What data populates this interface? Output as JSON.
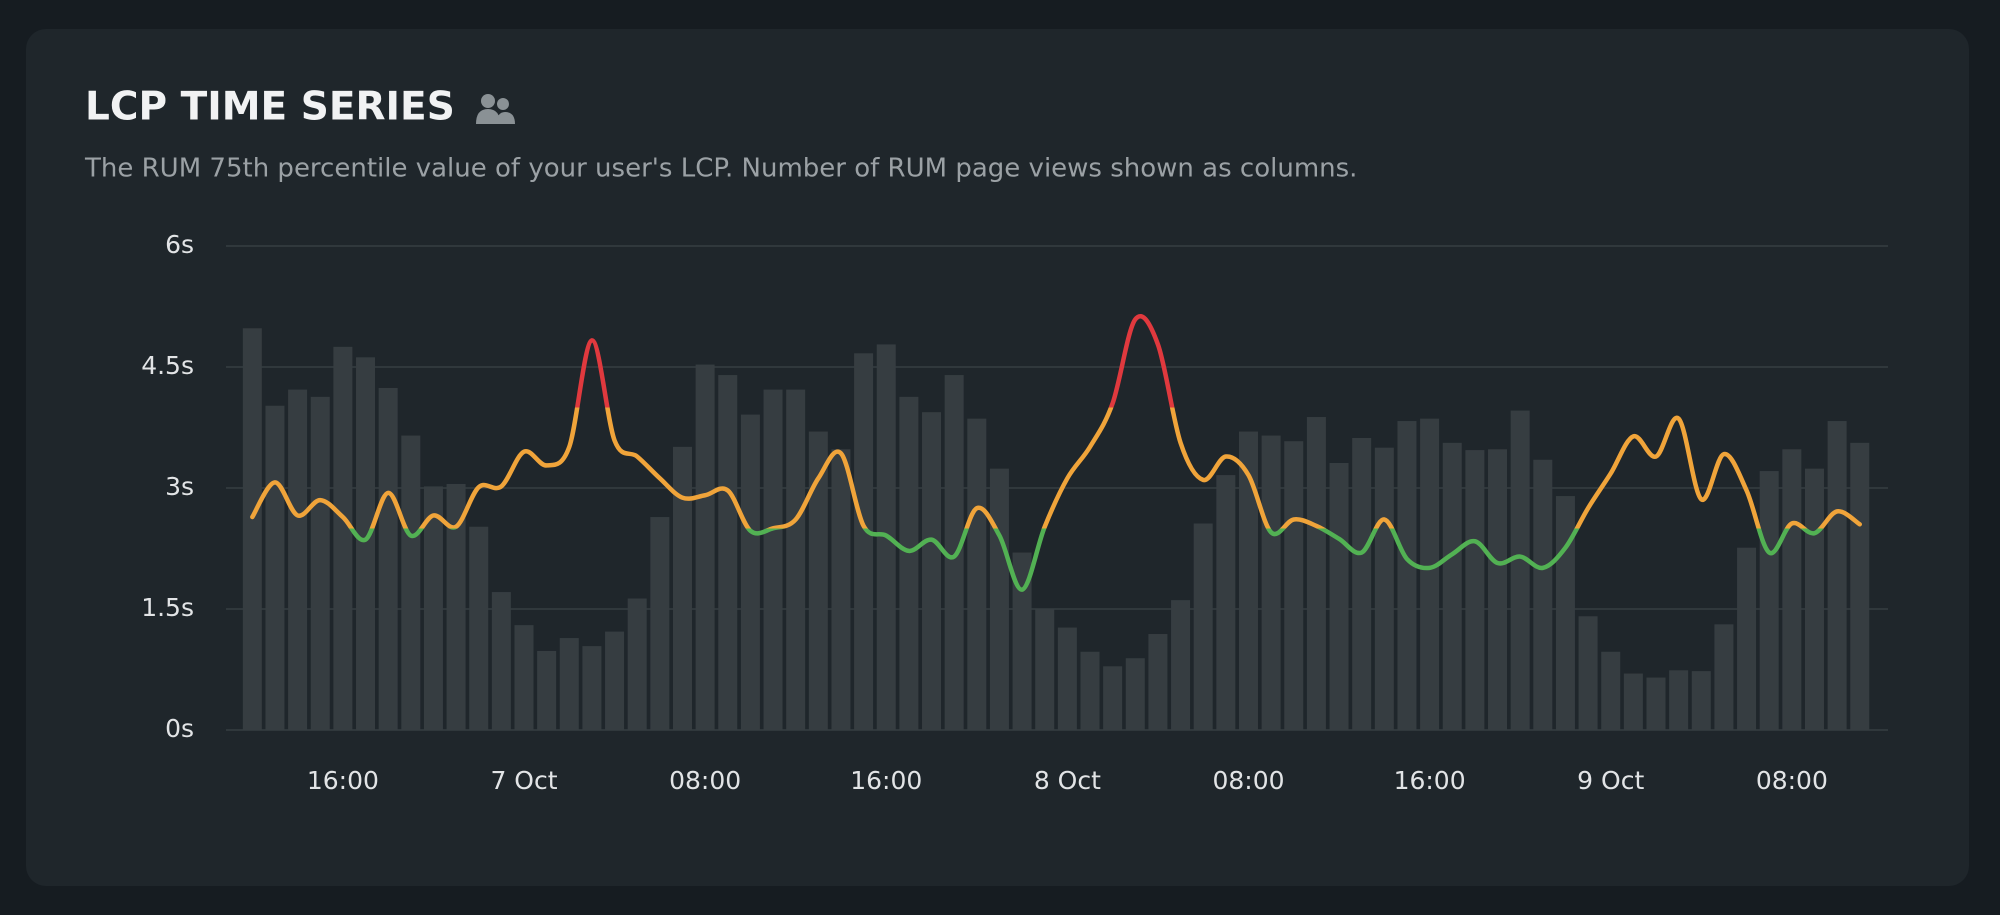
{
  "header": {
    "title": "LCP TIME SERIES",
    "subtitle": "The RUM 75th percentile value of your user's LCP. Number of RUM page views shown as columns."
  },
  "chart_data": {
    "type": "combo",
    "categories": [
      null,
      null,
      null,
      null,
      "16:00",
      null,
      null,
      null,
      null,
      null,
      null,
      null,
      "7 Oct",
      null,
      null,
      null,
      null,
      null,
      null,
      null,
      "08:00",
      null,
      null,
      null,
      null,
      null,
      null,
      null,
      "16:00",
      null,
      null,
      null,
      null,
      null,
      null,
      null,
      "8 Oct",
      null,
      null,
      null,
      null,
      null,
      null,
      null,
      "08:00",
      null,
      null,
      null,
      null,
      null,
      null,
      null,
      "16:00",
      null,
      null,
      null,
      null,
      null,
      null,
      null,
      "9 Oct",
      null,
      null,
      null,
      null,
      null,
      null,
      null,
      "08:00",
      null,
      null,
      null
    ],
    "ylim": [
      0,
      6
    ],
    "yticks": [
      {
        "value": 0,
        "label": "0s"
      },
      {
        "value": 1.5,
        "label": "1.5s"
      },
      {
        "value": 3,
        "label": "3s"
      },
      {
        "value": 4.5,
        "label": "4.5s"
      },
      {
        "value": 6,
        "label": "6s"
      }
    ],
    "grid": true,
    "series": [
      {
        "type": "bar",
        "color": "#363d41",
        "values": [
          4.98,
          4.02,
          4.22,
          4.13,
          4.75,
          4.62,
          4.24,
          3.65,
          3.02,
          3.05,
          2.52,
          1.71,
          1.3,
          0.98,
          1.14,
          1.04,
          1.22,
          1.63,
          2.64,
          3.51,
          4.53,
          4.4,
          3.91,
          4.22,
          4.22,
          3.7,
          3.48,
          4.67,
          4.78,
          4.13,
          3.94,
          4.4,
          3.86,
          3.24,
          2.2,
          1.5,
          1.27,
          0.97,
          0.79,
          0.89,
          1.19,
          1.61,
          2.56,
          3.16,
          3.7,
          3.65,
          3.58,
          3.88,
          3.31,
          3.62,
          3.5,
          3.83,
          3.86,
          3.56,
          3.47,
          3.48,
          3.96,
          3.35,
          2.9,
          1.41,
          0.97,
          0.7,
          0.65,
          0.74,
          0.73,
          1.31,
          2.26,
          3.21,
          3.48,
          3.24,
          3.83,
          3.56
        ]
      },
      {
        "type": "line",
        "color_bands": [
          {
            "upto": 2.5,
            "color": "#52b153"
          },
          {
            "upto": 4,
            "color": "#f0a43a"
          },
          {
            "color": "#e0393e"
          }
        ],
        "values": [
          2.64,
          3.07,
          2.66,
          2.85,
          2.64,
          2.36,
          2.94,
          2.41,
          2.66,
          2.52,
          3.01,
          3.02,
          3.45,
          3.28,
          3.51,
          4.83,
          3.59,
          3.39,
          3.12,
          2.88,
          2.91,
          2.97,
          2.47,
          2.5,
          2.61,
          3.12,
          3.43,
          2.53,
          2.41,
          2.22,
          2.36,
          2.15,
          2.75,
          2.41,
          1.74,
          2.52,
          3.12,
          3.51,
          4.05,
          5.09,
          4.78,
          3.56,
          3.1,
          3.39,
          3.16,
          2.45,
          2.61,
          2.53,
          2.37,
          2.2,
          2.61,
          2.12,
          2.01,
          2.18,
          2.34,
          2.07,
          2.15,
          2.01,
          2.26,
          2.75,
          3.18,
          3.64,
          3.39,
          3.86,
          2.86,
          3.42,
          2.97,
          2.2,
          2.56,
          2.44,
          2.71,
          2.55
        ]
      }
    ]
  }
}
